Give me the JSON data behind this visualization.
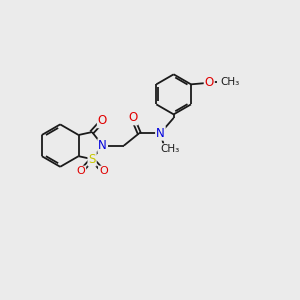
{
  "background_color": "#ebebeb",
  "bond_color": "#1a1a1a",
  "atom_colors": {
    "O": "#e00000",
    "N": "#0000dd",
    "S": "#c8c800",
    "C": "#1a1a1a"
  },
  "figsize": [
    3.0,
    3.0
  ],
  "dpi": 100
}
